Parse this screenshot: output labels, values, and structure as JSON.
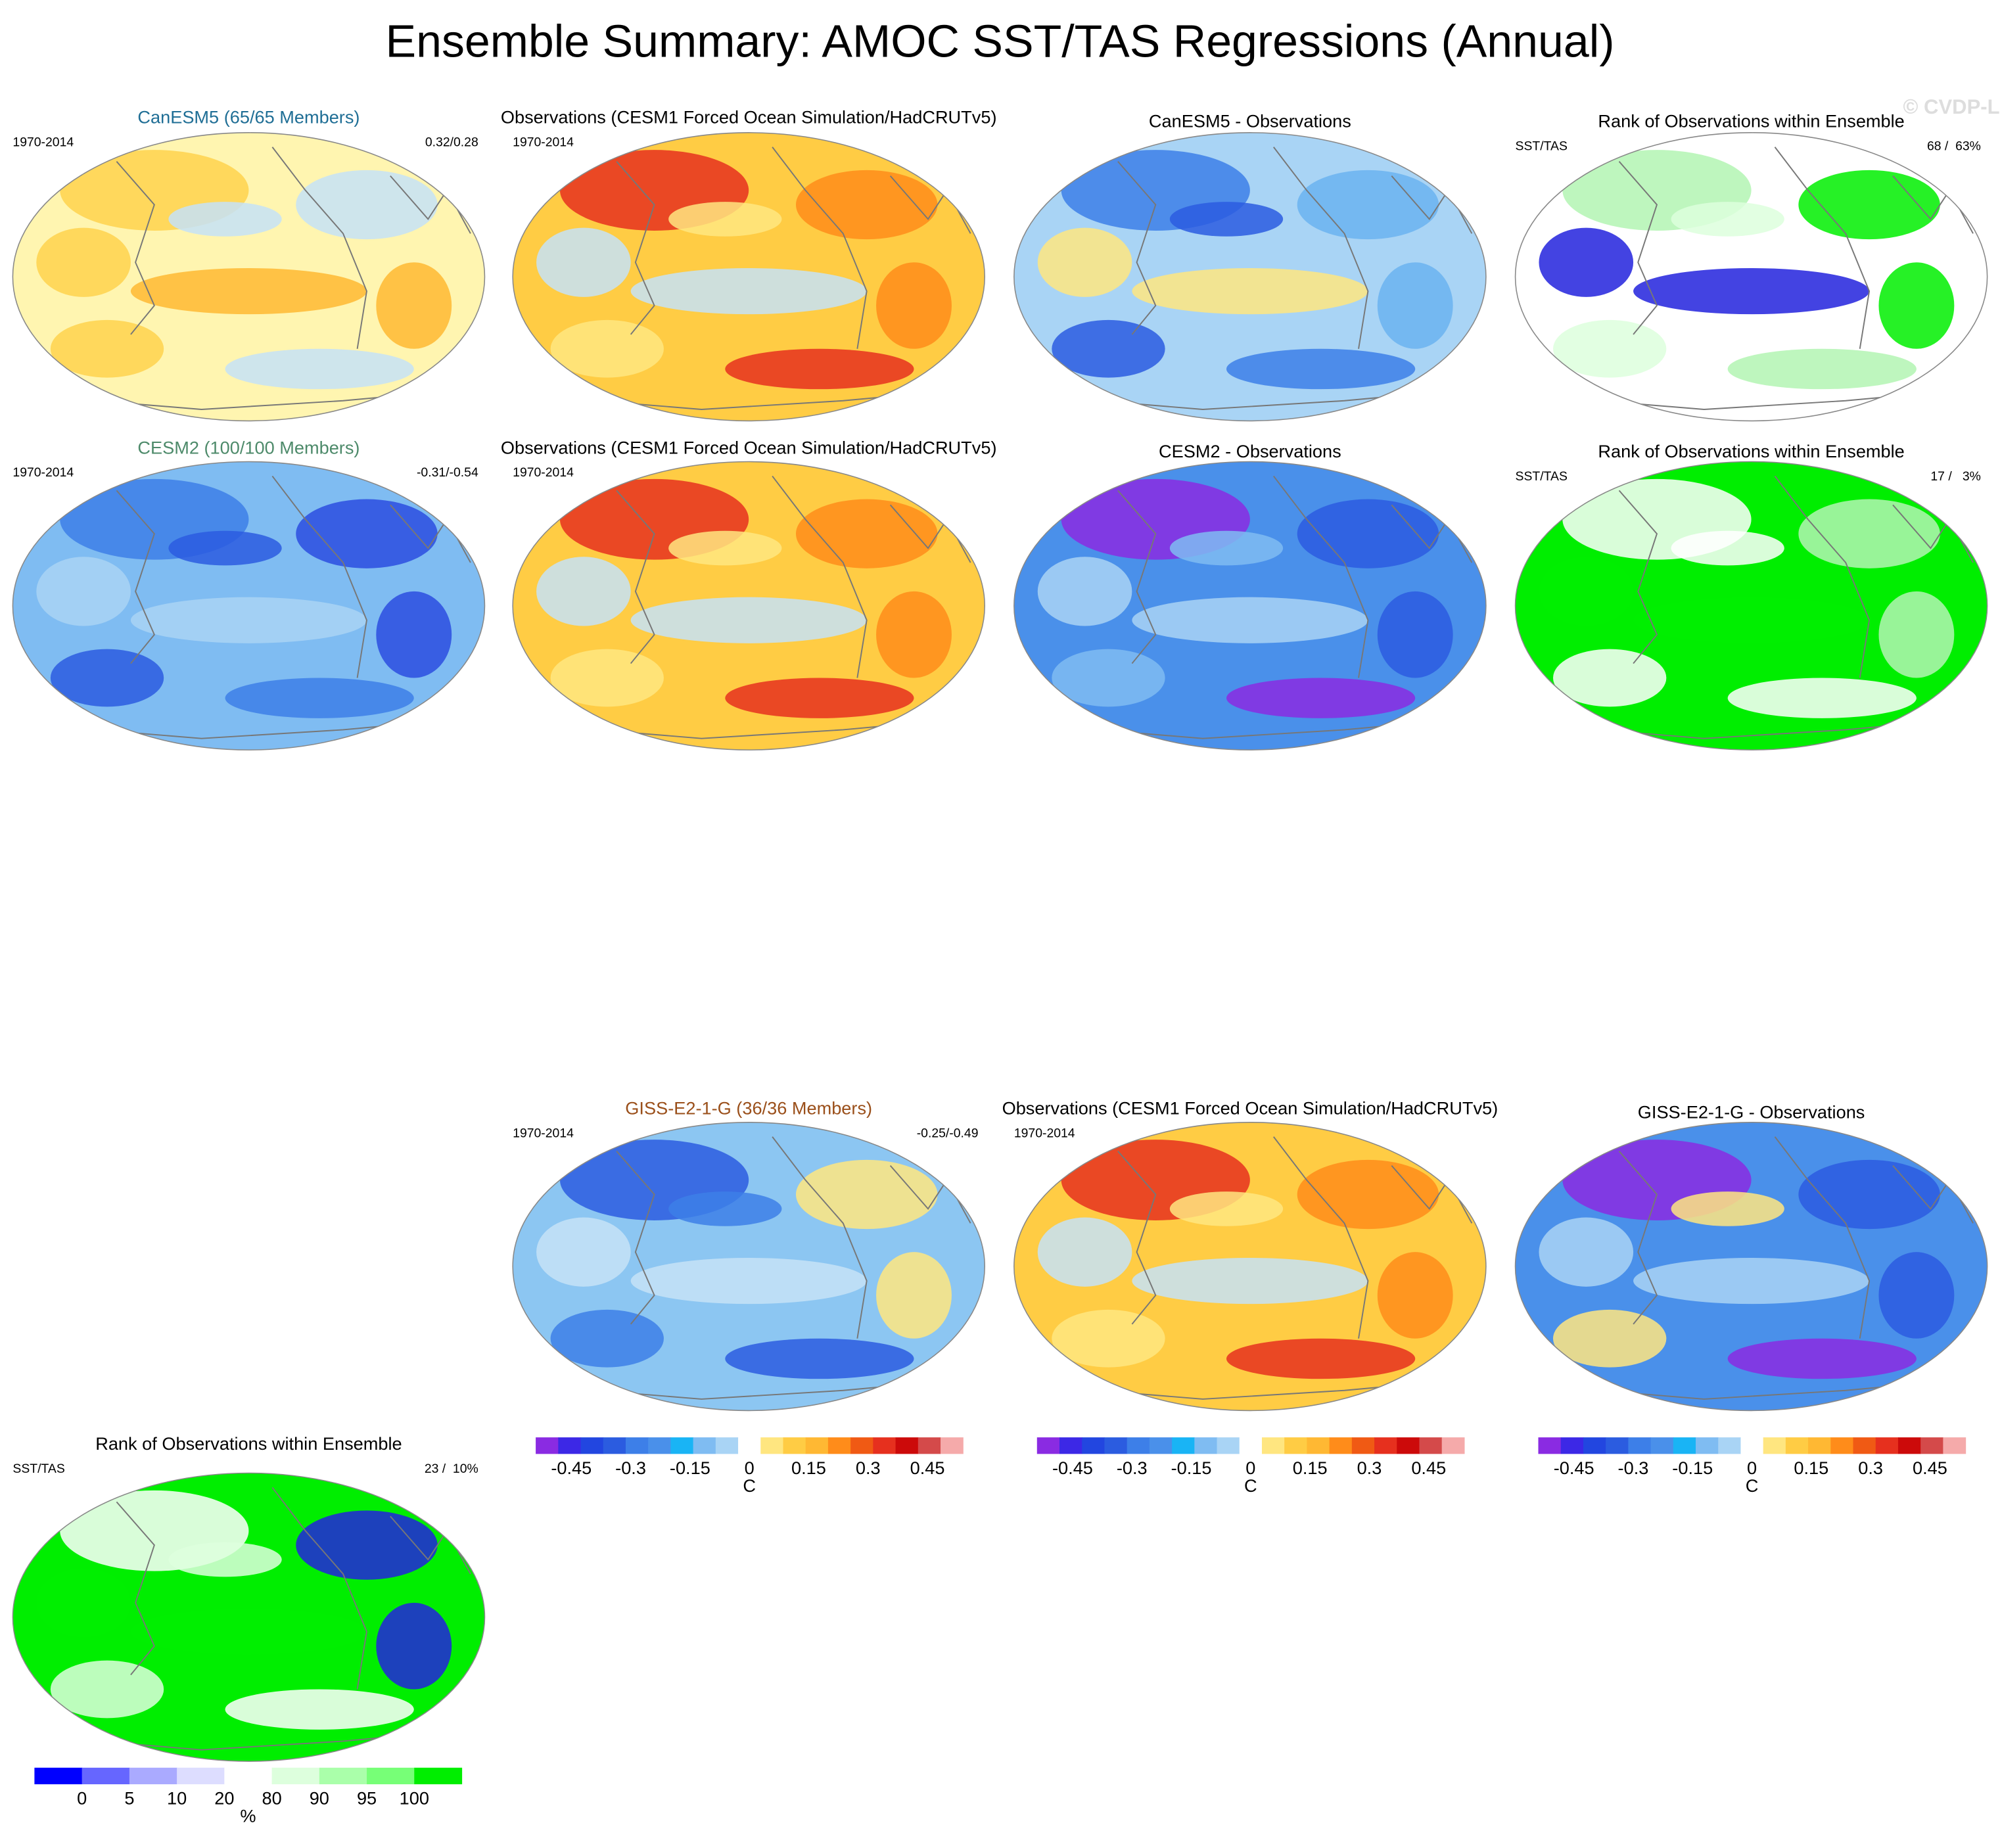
{
  "title": "Ensemble Summary: AMOC SST/TAS Regressions (Annual)",
  "watermark": "© CVDP-LE",
  "panels": [
    {
      "title": "CanESM5 (65/65 Members)",
      "title_color": "#1f6e95",
      "left": "1970-2014",
      "right": "0.32/0.28",
      "fill": "#fff5b0",
      "accents": [
        "#ffd24d",
        "#c6e2f7",
        "#ffb833"
      ]
    },
    {
      "title": "Observations (CESM1 Forced Ocean Simulation/HadCRUTv5)",
      "title_color": "#000000",
      "left": "1970-2014",
      "fill": "#ffcc44",
      "accents": [
        "#e6301e",
        "#ff8c1a",
        "#c6e2f7",
        "#ffe680"
      ]
    },
    {
      "title": "CanESM5 - Observations",
      "title_color": "#000000",
      "fill": "#a9d4f5",
      "accents": [
        "#3d7fe8",
        "#6bb3f0",
        "#ffe680",
        "#2b5ce0"
      ]
    },
    {
      "title": "Rank of Observations within Ensemble",
      "title_color": "#000000",
      "left": "SST/TAS",
      "right": "68 /  63%",
      "fill": "#ffffff",
      "accents": [
        "#b3f5b3",
        "#00ee00",
        "#2222dd",
        "#ddffdd"
      ]
    },
    {
      "title": "CESM2 (100/100 Members)",
      "title_color": "#4d8a6a",
      "left": "1970-2014",
      "right": "-0.31/-0.54",
      "fill": "#7fbcf2",
      "accents": [
        "#3d7fe8",
        "#2b4ee0",
        "#a9d4f5",
        "#2b5ce0"
      ]
    },
    {
      "title": "Observations (CESM1 Forced Ocean Simulation/HadCRUTv5)",
      "title_color": "#000000",
      "left": "1970-2014",
      "fill": "#ffcc44",
      "accents": [
        "#e6301e",
        "#ff8c1a",
        "#c6e2f7",
        "#ffe680"
      ]
    },
    {
      "title": "CESM2 - Observations",
      "title_color": "#000000",
      "fill": "#4a90ea",
      "accents": [
        "#8a2be2",
        "#2b5ce0",
        "#a9d4f5",
        "#7fbcf2"
      ]
    },
    {
      "title": "Rank of Observations within Ensemble",
      "title_color": "#000000",
      "left": "SST/TAS",
      "right": "17 /   3%",
      "fill": "#00ee00",
      "accents": [
        "#ffffff",
        "#b3f5b3",
        "#00ee00",
        "#ffffff"
      ]
    },
    {
      "title": "GISS-E2-1-G (36/36 Members)",
      "title_color": "#9a4f1a",
      "left": "1970-2014",
      "right": "-0.25/-0.49",
      "fill": "#8cc6f2",
      "accents": [
        "#2b5ce0",
        "#ffe680",
        "#c6e2f7",
        "#3d7fe8"
      ]
    },
    {
      "title": "Observations (CESM1 Forced Ocean Simulation/HadCRUTv5)",
      "title_color": "#000000",
      "left": "1970-2014",
      "fill": "#ffcc44",
      "accents": [
        "#e6301e",
        "#ff8c1a",
        "#c6e2f7",
        "#ffe680"
      ]
    },
    {
      "title": "GISS-E2-1-G - Observations",
      "title_color": "#000000",
      "fill": "#4a90ea",
      "accents": [
        "#8a2be2",
        "#2b5ce0",
        "#a9d4f5",
        "#ffe680"
      ]
    },
    {
      "title": "Rank of Observations within Ensemble",
      "title_color": "#000000",
      "left": "SST/TAS",
      "right": "23 /  10%",
      "fill": "#00ee00",
      "accents": [
        "#ffffff",
        "#2222dd",
        "#00ee00",
        "#ddffdd"
      ]
    }
  ],
  "colorbars": [
    {
      "ticks": [
        -0.45,
        -0.3,
        -0.15,
        0,
        0.15,
        0.3,
        0.45
      ],
      "lim": [
        -0.54,
        0.54
      ],
      "unit": "C",
      "colors": [
        "#8a2be2",
        "#3c28e6",
        "#2246e0",
        "#2b5ce0",
        "#3d7fe8",
        "#4a90ea",
        "#19b4f5",
        "#7fbcf2",
        "#a9d4f5",
        "#ffffff",
        "#ffe680",
        "#ffcc44",
        "#ffb833",
        "#ff8c1a",
        "#f05a14",
        "#e6301e",
        "#cc0a0a",
        "#d44a4a",
        "#f5aaaa"
      ]
    },
    {
      "ticks": [
        -0.45,
        -0.3,
        -0.15,
        0,
        0.15,
        0.3,
        0.45
      ],
      "lim": [
        -0.54,
        0.54
      ],
      "unit": "C",
      "colors": [
        "#8a2be2",
        "#3c28e6",
        "#2246e0",
        "#2b5ce0",
        "#3d7fe8",
        "#4a90ea",
        "#19b4f5",
        "#7fbcf2",
        "#a9d4f5",
        "#ffffff",
        "#ffe680",
        "#ffcc44",
        "#ffb833",
        "#ff8c1a",
        "#f05a14",
        "#e6301e",
        "#cc0a0a",
        "#d44a4a",
        "#f5aaaa"
      ]
    },
    {
      "ticks": [
        -0.45,
        -0.3,
        -0.15,
        0,
        0.15,
        0.3,
        0.45
      ],
      "lim": [
        -0.54,
        0.54
      ],
      "unit": "C",
      "colors": [
        "#8a2be2",
        "#3c28e6",
        "#2246e0",
        "#2b5ce0",
        "#3d7fe8",
        "#4a90ea",
        "#19b4f5",
        "#7fbcf2",
        "#a9d4f5",
        "#ffffff",
        "#ffe680",
        "#ffcc44",
        "#ffb833",
        "#ff8c1a",
        "#f05a14",
        "#e6301e",
        "#cc0a0a",
        "#d44a4a",
        "#f5aaaa"
      ]
    },
    {
      "ticks": [
        0,
        5,
        10,
        20,
        80,
        90,
        95,
        100
      ],
      "unit": "%",
      "colors": [
        "#0000ff",
        "#6666ff",
        "#aaaaff",
        "#ddddff",
        "#ffffff",
        "#ddffdd",
        "#aaffaa",
        "#77ff77",
        "#00ee00"
      ]
    }
  ]
}
